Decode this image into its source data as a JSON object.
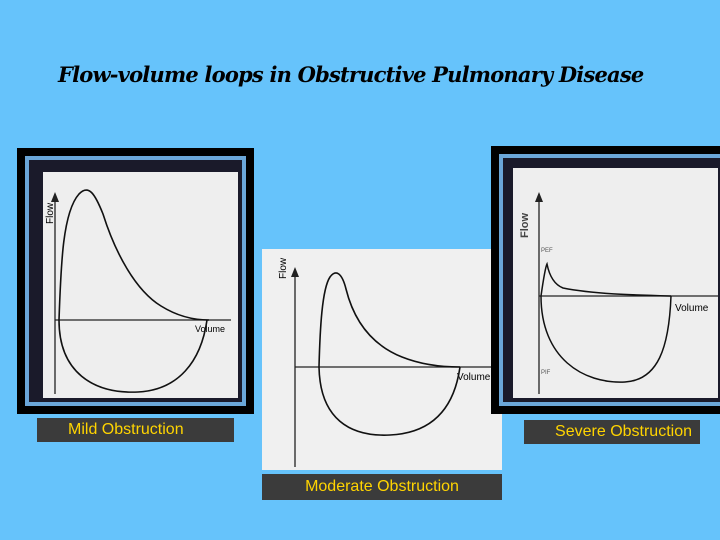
{
  "title": "Flow-volume loops in Obstructive Pulmonary Disease",
  "panels": {
    "mild": {
      "caption": "Mild  Obstruction",
      "y_label": "Flow",
      "x_label": "Volume"
    },
    "moderate": {
      "caption": "Moderate Obstruction",
      "y_label": "Flow",
      "x_label": "Volume"
    },
    "severe": {
      "caption": "Severe Obstruction",
      "y_label": "Flow",
      "x_label": "Volume",
      "pef_label": "PEF",
      "pif_label": "PIF"
    }
  },
  "colors": {
    "background": "#66c3fb",
    "caption_bg": "#3b3b3b",
    "caption_text": "#ffd400",
    "frame_border": "#6aa6d8"
  }
}
